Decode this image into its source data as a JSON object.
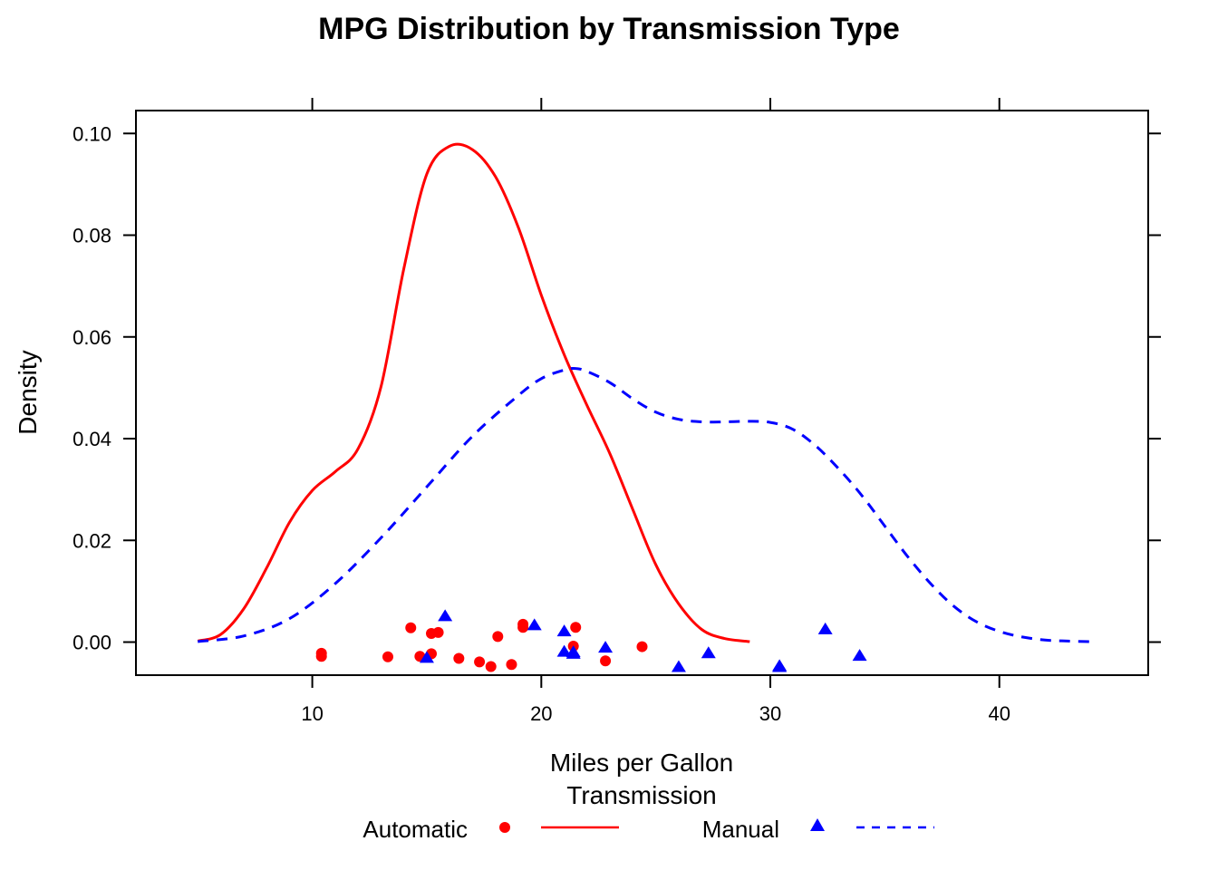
{
  "chart_data": {
    "type": "line",
    "title": "MPG Distribution by Transmission Type",
    "xlabel": "Miles per Gallon",
    "ylabel": "Density",
    "xlim": [
      2.3,
      46.5
    ],
    "ylim": [
      -0.0065,
      0.1045
    ],
    "x_ticks": [
      10,
      20,
      30,
      40
    ],
    "y_ticks": [
      0.0,
      0.02,
      0.04,
      0.06,
      0.08,
      0.1
    ],
    "x_tick_labels": [
      "10",
      "20",
      "30",
      "40"
    ],
    "y_tick_labels": [
      "0.00",
      "0.02",
      "0.04",
      "0.06",
      "0.08",
      "0.10"
    ],
    "grid": false,
    "legend": {
      "title": "Transmission",
      "position": "bottom",
      "entries": [
        "Automatic",
        "Manual"
      ]
    },
    "series": [
      {
        "name": "Automatic",
        "color": "#ff0000",
        "marker": "circle",
        "line_style": "solid",
        "density": {
          "x": [
            5.0,
            6.0,
            7.0,
            8.0,
            9.0,
            10.0,
            11.0,
            12.0,
            13.0,
            14.0,
            15.0,
            16.0,
            17.0,
            18.0,
            19.0,
            20.0,
            21.0,
            22.0,
            23.0,
            24.0,
            25.0,
            26.0,
            27.0,
            28.0,
            29.1
          ],
          "y": [
            0.0002,
            0.0015,
            0.0065,
            0.0145,
            0.0235,
            0.0298,
            0.0335,
            0.038,
            0.0502,
            0.0735,
            0.092,
            0.0975,
            0.0968,
            0.0915,
            0.0815,
            0.0682,
            0.0565,
            0.0465,
            0.037,
            0.026,
            0.0152,
            0.0075,
            0.0025,
            0.0007,
            0.0001
          ]
        },
        "points": {
          "x": [
            10.4,
            10.4,
            13.3,
            14.3,
            14.7,
            15.2,
            15.2,
            15.5,
            16.4,
            17.3,
            17.8,
            18.1,
            18.7,
            19.2,
            19.2,
            21.4,
            21.5,
            22.8,
            24.4
          ],
          "y": [
            -0.0022,
            -0.0028,
            -0.0029,
            0.0028,
            -0.0028,
            0.0017,
            -0.0023,
            0.0019,
            -0.0032,
            -0.0039,
            -0.0048,
            0.0011,
            -0.0044,
            0.0035,
            0.0029,
            -0.0008,
            0.0029,
            -0.0037,
            -0.0009
          ]
        }
      },
      {
        "name": "Manual",
        "color": "#0000ff",
        "marker": "triangle",
        "line_style": "dashed",
        "density": {
          "x": [
            5.0,
            7.0,
            9.0,
            11.0,
            13.0,
            15.0,
            17.0,
            19.0,
            20.0,
            21.0,
            21.5,
            22.0,
            23.0,
            24.0,
            25.0,
            26.0,
            27.0,
            28.0,
            29.0,
            30.0,
            31.0,
            32.0,
            33.0,
            34.0,
            35.0,
            36.0,
            37.0,
            38.0,
            39.0,
            40.0,
            41.0,
            42.0,
            43.0,
            44.0
          ],
          "y": [
            0.0001,
            0.0012,
            0.0046,
            0.0115,
            0.0205,
            0.0305,
            0.0405,
            0.0485,
            0.0518,
            0.0535,
            0.0538,
            0.0532,
            0.051,
            0.0478,
            0.0452,
            0.0438,
            0.0433,
            0.0433,
            0.0434,
            0.0432,
            0.0418,
            0.0385,
            0.034,
            0.0288,
            0.0228,
            0.0168,
            0.0115,
            0.0071,
            0.004,
            0.0021,
            0.001,
            0.0004,
            0.0002,
            0.0001
          ]
        },
        "points": {
          "x": [
            15.0,
            15.8,
            19.7,
            21.0,
            21.0,
            21.4,
            21.4,
            22.8,
            26.0,
            27.3,
            30.4,
            30.4,
            32.4,
            33.9
          ],
          "y": [
            -0.003,
            0.0052,
            0.0034,
            0.0022,
            -0.0018,
            -0.0022,
            -0.0019,
            -0.001,
            -0.0048,
            -0.0021,
            -0.0048,
            -0.0046,
            0.0026,
            -0.0026
          ]
        }
      }
    ]
  }
}
